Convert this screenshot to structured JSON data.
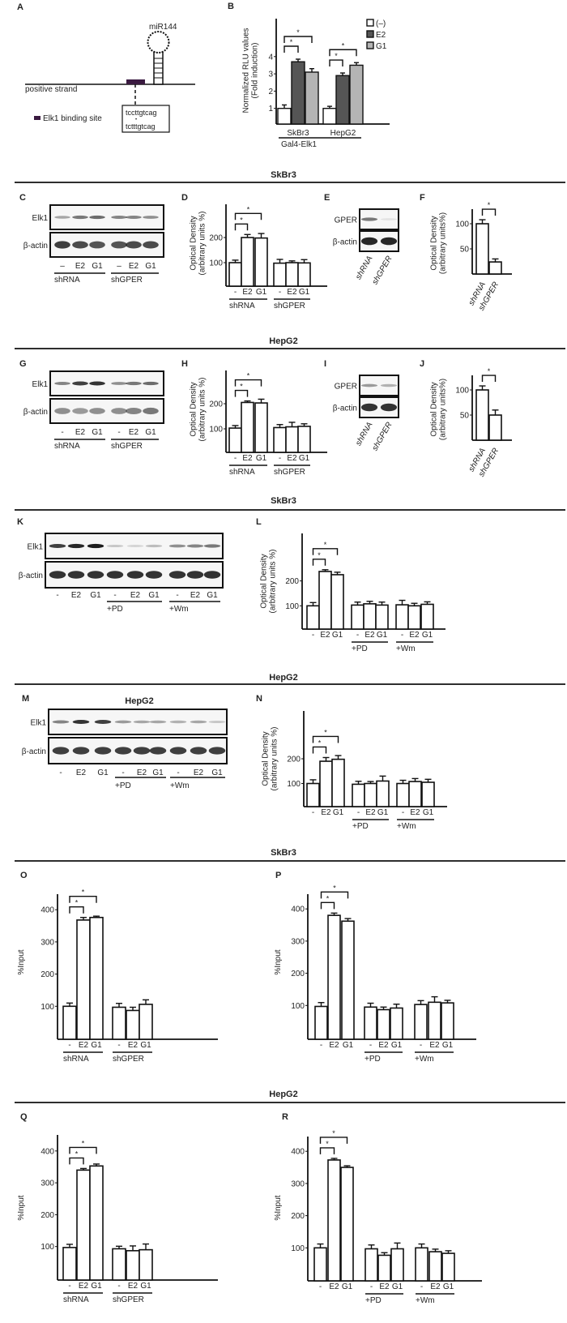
{
  "panel_a": {
    "label": "A",
    "mirna": "miR144",
    "strand": "positive strand",
    "legend": "Elk1 binding site",
    "seq_top": "tccttgtcag",
    "seq_mark": "•",
    "seq_bottom": "tctttgtcag",
    "colors": {
      "binding_site": "#3a1a40"
    }
  },
  "section_headers": [
    "SkBr3",
    "HepG2",
    "SkBr3",
    "HepG2",
    "SkBr3",
    "HepG2"
  ],
  "blots": {
    "C": {
      "label": "C",
      "rows": [
        "Elk1",
        "β-actin"
      ],
      "lanes": [
        "–",
        "E2",
        "G1",
        "–",
        "E2",
        "G1"
      ],
      "groups": [
        {
          "label": "shRNA",
          "first": 0,
          "last": 2
        },
        {
          "label": "shGPER",
          "first": 3,
          "last": 5
        }
      ]
    },
    "E": {
      "label": "E",
      "rows": [
        "GPER",
        "β-actin"
      ],
      "lanes": [
        "shRNA",
        "shGPER"
      ],
      "groups": []
    },
    "G": {
      "label": "G",
      "rows": [
        "Elk1",
        "β-actin"
      ],
      "lanes": [
        "-",
        "E2",
        "G1",
        "-",
        "E2",
        "G1"
      ],
      "groups": [
        {
          "label": "shRNA",
          "first": 0,
          "last": 2
        },
        {
          "label": "shGPER",
          "first": 3,
          "last": 5
        }
      ]
    },
    "I": {
      "label": "I",
      "rows": [
        "GPER",
        "β-actin"
      ],
      "lanes": [
        "shRNA",
        "shGPER"
      ],
      "groups": []
    },
    "K": {
      "label": "K",
      "rows": [
        "Elk1",
        "β-actin"
      ],
      "lanes": [
        "-",
        "E2",
        "G1",
        "-",
        "E2",
        "G1",
        "-",
        "E2",
        "G1"
      ],
      "groups": [
        {
          "label": "+PD",
          "first": 3,
          "last": 5
        },
        {
          "label": "+Wm",
          "first": 6,
          "last": 8
        }
      ]
    },
    "M": {
      "label": "M",
      "title": "HepG2",
      "rows": [
        "Elk1",
        "β-actin"
      ],
      "lanes": [
        "-",
        "E2",
        "G1",
        "-",
        "E2",
        "G1",
        "-",
        "E2",
        "G1"
      ],
      "groups": [
        {
          "label": "+PD",
          "first": 3,
          "last": 5
        },
        {
          "label": "+Wm",
          "first": 6,
          "last": 8
        }
      ]
    }
  },
  "chart_data": [
    {
      "id": "B",
      "label": "B",
      "type": "bar",
      "ylabel": [
        "Normalized RLU values",
        "(Fold induction)"
      ],
      "yticks": [
        1,
        2,
        3,
        4
      ],
      "categories": [
        "SkBr3",
        "HepG2"
      ],
      "group_label": "Gal4-Elk1",
      "legend_position": "top-right",
      "series": [
        {
          "name": "(–)",
          "values": [
            1.0,
            1.0
          ],
          "errors": [
            0.2,
            0.12
          ],
          "color": "#ffffff"
        },
        {
          "name": "E2",
          "values": [
            3.7,
            2.9
          ],
          "errors": [
            0.15,
            0.15
          ],
          "color": "#555555"
        },
        {
          "name": "G1",
          "values": [
            3.1,
            3.5
          ],
          "errors": [
            0.2,
            0.15
          ],
          "color": "#b4b4b4"
        }
      ],
      "significance": [
        {
          "category": 0,
          "from": 0,
          "to": 1,
          "text": "*"
        },
        {
          "category": 0,
          "from": 0,
          "to": 2,
          "text": "*"
        },
        {
          "category": 1,
          "from": 0,
          "to": 1,
          "text": "*"
        },
        {
          "category": 1,
          "from": 0,
          "to": 2,
          "text": "*"
        }
      ]
    },
    {
      "id": "D",
      "label": "D",
      "type": "bar",
      "ylabel": [
        "Optical Density",
        "(arbitrary units %)"
      ],
      "yticks": [
        100,
        200
      ],
      "bar_labels": [
        "-",
        "E2",
        "G1",
        "-",
        "E2",
        "G1"
      ],
      "values": [
        100,
        200,
        198,
        98,
        100,
        99
      ],
      "errors": [
        10,
        12,
        18,
        15,
        7,
        13
      ],
      "groups": [
        {
          "label": "shRNA",
          "first": 0,
          "last": 2
        },
        {
          "label": "shGPER",
          "first": 3,
          "last": 5
        }
      ],
      "significance": [
        {
          "from": 0,
          "to": 1,
          "text": "*"
        },
        {
          "from": 0,
          "to": 2,
          "text": "*"
        }
      ]
    },
    {
      "id": "F",
      "label": "F",
      "type": "bar",
      "ylabel": [
        "Optical Density",
        "(arbitrary units%)"
      ],
      "yticks": [
        50,
        100
      ],
      "bar_labels": [
        "shRNA",
        "shGPER"
      ],
      "values": [
        100,
        24
      ],
      "errors": [
        8,
        6
      ],
      "groups": [],
      "significance": [
        {
          "from": 0,
          "to": 1,
          "text": "*"
        }
      ]
    },
    {
      "id": "H",
      "label": "H",
      "type": "bar",
      "ylabel": [
        "Optical Density",
        "(arbitrary units %)"
      ],
      "yticks": [
        100,
        200
      ],
      "bar_labels": [
        "-",
        "E2",
        "G1",
        "-",
        "E2",
        "G1"
      ],
      "values": [
        103,
        205,
        203,
        105,
        108,
        110
      ],
      "errors": [
        10,
        6,
        15,
        12,
        18,
        10
      ],
      "groups": [
        {
          "label": "shRNA",
          "first": 0,
          "last": 2
        },
        {
          "label": "shGPER",
          "first": 3,
          "last": 5
        }
      ],
      "significance": [
        {
          "from": 0,
          "to": 1,
          "text": "*"
        },
        {
          "from": 0,
          "to": 2,
          "text": "*"
        }
      ]
    },
    {
      "id": "J",
      "label": "J",
      "type": "bar",
      "ylabel": [
        "Optical Density",
        "(arbitrary units%)"
      ],
      "yticks": [
        50,
        100
      ],
      "bar_labels": [
        "shRNA",
        "shGPER"
      ],
      "values": [
        100,
        50
      ],
      "errors": [
        8,
        10
      ],
      "groups": [],
      "significance": [
        {
          "from": 0,
          "to": 1,
          "text": "*"
        }
      ]
    },
    {
      "id": "L",
      "label": "L",
      "type": "bar",
      "ylabel": [
        "Optical Density",
        "(arbitrary units %)"
      ],
      "yticks": [
        100,
        200
      ],
      "bar_labels": [
        "-",
        "E2",
        "G1",
        "-",
        "E2",
        "G1",
        "-",
        "E2",
        "G1"
      ],
      "values": [
        100,
        238,
        225,
        103,
        108,
        103,
        104,
        100,
        106
      ],
      "errors": [
        13,
        7,
        10,
        12,
        10,
        12,
        18,
        10,
        10
      ],
      "groups": [
        {
          "label": "+PD",
          "first": 3,
          "last": 5
        },
        {
          "label": "+Wm",
          "first": 6,
          "last": 8
        }
      ],
      "significance": [
        {
          "from": 0,
          "to": 1,
          "text": "*"
        },
        {
          "from": 0,
          "to": 2,
          "text": "*"
        }
      ]
    },
    {
      "id": "N",
      "label": "N",
      "type": "bar",
      "ylabel": [
        "Optical Density",
        "(arbitrary units %)"
      ],
      "yticks": [
        100,
        200
      ],
      "bar_labels": [
        "-",
        "E2",
        "G1",
        "-",
        "E2",
        "G1",
        "-",
        "E2",
        "G1"
      ],
      "values": [
        100,
        190,
        198,
        97,
        100,
        110,
        100,
        108,
        105
      ],
      "errors": [
        15,
        15,
        15,
        12,
        8,
        20,
        13,
        12,
        12
      ],
      "groups": [
        {
          "label": "+PD",
          "first": 3,
          "last": 5
        },
        {
          "label": "+Wm",
          "first": 6,
          "last": 8
        }
      ],
      "significance": [
        {
          "from": 0,
          "to": 1,
          "text": "*"
        },
        {
          "from": 0,
          "to": 2,
          "text": "*"
        }
      ]
    },
    {
      "id": "O",
      "label": "O",
      "type": "bar",
      "ylabel": [
        "%Input"
      ],
      "yticks": [
        100,
        200,
        300,
        400
      ],
      "bar_labels": [
        "-",
        "E2",
        "G1",
        "-",
        "E2",
        "G1"
      ],
      "values": [
        100,
        368,
        376,
        97,
        87,
        106
      ],
      "errors": [
        10,
        8,
        4,
        12,
        10,
        14
      ],
      "groups": [
        {
          "label": "shRNA",
          "first": 0,
          "last": 2
        },
        {
          "label": "shGPER",
          "first": 3,
          "last": 5
        }
      ],
      "significance": [
        {
          "from": 0,
          "to": 1,
          "text": "*"
        },
        {
          "from": 0,
          "to": 2,
          "text": "*"
        }
      ]
    },
    {
      "id": "P",
      "label": "P",
      "type": "bar",
      "ylabel": [
        "%Input"
      ],
      "yticks": [
        100,
        200,
        300,
        400
      ],
      "bar_labels": [
        "-",
        "E2",
        "G1",
        "-",
        "E2",
        "G1",
        "-",
        "E2",
        "G1"
      ],
      "values": [
        97,
        380,
        362,
        95,
        87,
        92,
        103,
        110,
        108
      ],
      "errors": [
        12,
        7,
        8,
        12,
        8,
        12,
        12,
        17,
        8
      ],
      "groups": [
        {
          "label": "+PD",
          "first": 3,
          "last": 5
        },
        {
          "label": "+Wm",
          "first": 6,
          "last": 8
        }
      ],
      "significance": [
        {
          "from": 0,
          "to": 1,
          "text": "*"
        },
        {
          "from": 0,
          "to": 2,
          "text": "*"
        }
      ]
    },
    {
      "id": "Q",
      "label": "Q",
      "type": "bar",
      "ylabel": [
        "%Input"
      ],
      "yticks": [
        100,
        200,
        300,
        400
      ],
      "bar_labels": [
        "-",
        "E2",
        "G1",
        "-",
        "E2",
        "G1"
      ],
      "values": [
        97,
        340,
        353,
        93,
        87,
        90
      ],
      "errors": [
        10,
        5,
        6,
        8,
        15,
        18
      ],
      "groups": [
        {
          "label": "shRNA",
          "first": 0,
          "last": 2
        },
        {
          "label": "shGPER",
          "first": 3,
          "last": 5
        }
      ],
      "significance": [
        {
          "from": 0,
          "to": 1,
          "text": "*"
        },
        {
          "from": 0,
          "to": 2,
          "text": "*"
        }
      ]
    },
    {
      "id": "R",
      "label": "R",
      "type": "bar",
      "ylabel": [
        "%Input"
      ],
      "yticks": [
        100,
        200,
        300,
        400
      ],
      "bar_labels": [
        "-",
        "E2",
        "G1",
        "-",
        "E2",
        "G1",
        "-",
        "E2",
        "G1"
      ],
      "values": [
        100,
        373,
        350,
        97,
        77,
        97,
        100,
        88,
        83
      ],
      "errors": [
        12,
        5,
        5,
        12,
        8,
        18,
        12,
        8,
        8
      ],
      "groups": [
        {
          "label": "+PD",
          "first": 3,
          "last": 5
        },
        {
          "label": "+Wm",
          "first": 6,
          "last": 8
        }
      ],
      "significance": [
        {
          "from": 0,
          "to": 1,
          "text": "*"
        },
        {
          "from": 0,
          "to": 2,
          "text": "*"
        }
      ]
    }
  ]
}
